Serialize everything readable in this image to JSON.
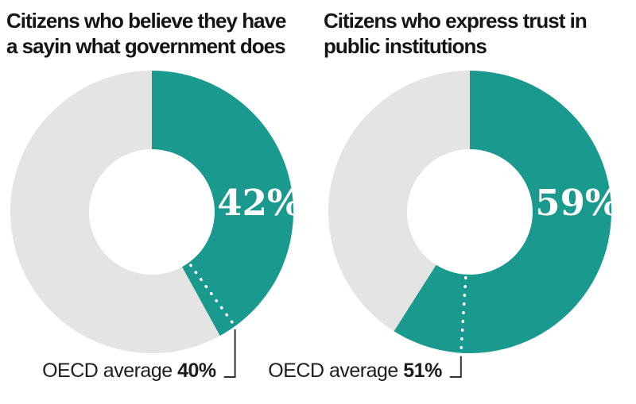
{
  "colors": {
    "accent_teal": "#1a998f",
    "remainder_gray": "#e4e4e2",
    "title_text": "#151515",
    "label_text": "#1d1d1d",
    "value_text": "#ffffff",
    "connector": "#333333",
    "dotted_marker": "#ffffff",
    "background": "#ffffff"
  },
  "chart_data": [
    {
      "type": "pie",
      "variant": "donut",
      "title": "Citizens who believe they have a sayin what government does",
      "title_lines": [
        "Citizens who believe they have",
        "a sayin what government does"
      ],
      "value_pct": 42,
      "value_label": "42%",
      "remainder_pct": 58,
      "oecd_average_pct": 40,
      "oecd_label_prefix": "OECD average",
      "oecd_label_value": "40%",
      "slices": [
        {
          "label": "42%",
          "value": 42,
          "color": "#1a998f"
        },
        {
          "label": "",
          "value": 58,
          "color": "#e4e4e2"
        }
      ],
      "legend": "none",
      "start_angle_deg": 0,
      "direction": "clockwise"
    },
    {
      "type": "pie",
      "variant": "donut",
      "title": "Citizens who express trust in public institutions",
      "title_lines": [
        "Citizens who express trust in",
        "public institutions"
      ],
      "value_pct": 59,
      "value_label": "59%",
      "remainder_pct": 41,
      "oecd_average_pct": 51,
      "oecd_label_prefix": "OECD average",
      "oecd_label_value": "51%",
      "slices": [
        {
          "label": "59%",
          "value": 59,
          "color": "#1a998f"
        },
        {
          "label": "",
          "value": 41,
          "color": "#e4e4e2"
        }
      ],
      "legend": "none",
      "start_angle_deg": 0,
      "direction": "clockwise"
    }
  ]
}
